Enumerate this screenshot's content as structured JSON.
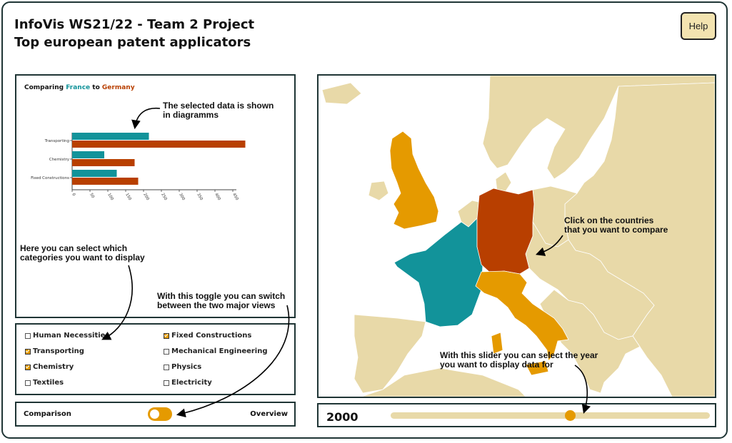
{
  "header": {
    "title": "InfoVis WS21/22 - Team 2 Project",
    "subtitle": "Top european patent applicators",
    "help_label": "Help"
  },
  "colors": {
    "france": "#12939a",
    "germany": "#b83f00",
    "selected": "#e59a00",
    "land": "#e8d9a8",
    "frame": "#1f3535"
  },
  "comparison": {
    "prefix": "Comparing ",
    "country_a": "France",
    "connector": " to ",
    "country_b": "Germany"
  },
  "chart_data": {
    "type": "bar",
    "orientation": "horizontal",
    "categories": [
      "Transporting",
      "Chemistry",
      "Fixed Constructions"
    ],
    "series": [
      {
        "name": "France",
        "values": [
          215,
          90,
          125
        ]
      },
      {
        "name": "Germany",
        "values": [
          485,
          175,
          185
        ]
      }
    ],
    "xticks": [
      0,
      50,
      100,
      150,
      200,
      250,
      300,
      350,
      400,
      450
    ],
    "xlim": [
      0,
      460
    ]
  },
  "categories": [
    {
      "label": "Human Necessities",
      "checked": false
    },
    {
      "label": "Fixed Constructions",
      "checked": true
    },
    {
      "label": "Transporting",
      "checked": true
    },
    {
      "label": "Mechanical Engineering",
      "checked": false
    },
    {
      "label": "Chemistry",
      "checked": true
    },
    {
      "label": "Physics",
      "checked": false
    },
    {
      "label": "Textiles",
      "checked": false
    },
    {
      "label": "Electricity",
      "checked": false
    }
  ],
  "view_toggle": {
    "left_label": "Comparison",
    "right_label": "Overview",
    "state": "overview"
  },
  "slider": {
    "year": "2000",
    "min_year": 1977,
    "max_year": 2018
  },
  "map": {
    "selected_countries": [
      "France",
      "Germany"
    ],
    "highlighted_countries": [
      "United Kingdom",
      "Italy"
    ]
  },
  "annotations": {
    "chart": "The selected data is shown\nin diagramms",
    "categories": "Here you can select which\ncategories you want to display",
    "toggle": "With this toggle you can switch\nbetween the two major views",
    "map": "Click on the countries\nthat you want to compare",
    "slider": "With this slider you can select the year\nyou want to display data for"
  }
}
